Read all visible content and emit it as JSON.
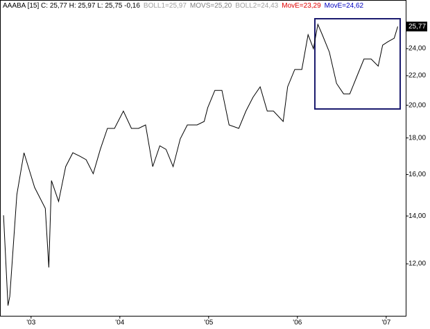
{
  "chart_data": {
    "type": "line",
    "title": "AAABA [15] C: 25,77 H: 25,97 L: 25,75 -0,16",
    "indicators": [
      {
        "text": "BOLL1=25,97",
        "color": "#a0a0a0"
      },
      {
        "text": "MOVS=25,20",
        "color": "#808080"
      },
      {
        "text": "BOLL2=24,43",
        "color": "#a0a0a0"
      },
      {
        "text": "MovE=23,29",
        "color": "#e00000"
      },
      {
        "text": "MovE=24,62",
        "color": "#0000c0"
      }
    ],
    "last_value_label": "25,77",
    "log_scale": true,
    "x": [
      2002.69,
      2002.74,
      2002.76,
      2002.84,
      2002.92,
      2003.04,
      2003.16,
      2003.2,
      2003.23,
      2003.31,
      2003.39,
      2003.47,
      2003.55,
      2003.62,
      2003.7,
      2003.78,
      2003.86,
      2003.94,
      2004.04,
      2004.13,
      2004.21,
      2004.29,
      2004.37,
      2004.45,
      2004.52,
      2004.6,
      2004.68,
      2004.76,
      2004.87,
      2004.95,
      2004.99,
      2005.07,
      2005.15,
      2005.23,
      2005.34,
      2005.42,
      2005.5,
      2005.58,
      2005.66,
      2005.73,
      2005.84,
      2005.89,
      2005.97,
      2006.05,
      2006.12,
      2006.18,
      2006.23,
      2006.28,
      2006.36,
      2006.44,
      2006.52,
      2006.59,
      2006.67,
      2006.75,
      2006.83,
      2006.91,
      2006.96,
      2007.02,
      2007.09,
      2007.13
    ],
    "series": [
      {
        "name": "AAABA",
        "color": "#000000",
        "values": [
          14.03,
          10.49,
          10.8,
          15.0,
          17.16,
          15.35,
          14.35,
          11.86,
          15.69,
          14.67,
          16.41,
          17.16,
          16.97,
          16.78,
          16.04,
          17.35,
          18.56,
          18.56,
          19.63,
          18.56,
          18.56,
          18.77,
          16.41,
          17.55,
          17.35,
          16.41,
          17.95,
          18.77,
          18.77,
          18.98,
          19.84,
          20.98,
          20.98,
          18.77,
          18.56,
          19.63,
          20.52,
          21.22,
          19.63,
          19.63,
          18.98,
          21.22,
          22.44,
          22.44,
          25.1,
          24.0,
          25.95,
          25.1,
          23.73,
          21.46,
          20.75,
          20.75,
          21.95,
          23.21,
          23.21,
          22.69,
          24.27,
          24.54,
          24.82,
          25.77
        ]
      }
    ],
    "xlim": [
      2002.65,
      2007.22
    ],
    "xticks": [
      {
        "value": 2003,
        "label": "'03"
      },
      {
        "value": 2004,
        "label": "'04"
      },
      {
        "value": 2005,
        "label": "'05"
      },
      {
        "value": 2006,
        "label": "'06"
      },
      {
        "value": 2007,
        "label": "'07"
      }
    ],
    "ylim": [
      10.15,
      28.07
    ],
    "yticks": [
      {
        "value": 12,
        "label": "12,00"
      },
      {
        "value": 14,
        "label": "14,00"
      },
      {
        "value": 16,
        "label": "16,00"
      },
      {
        "value": 18,
        "label": "18,00"
      },
      {
        "value": 20,
        "label": "20,00"
      },
      {
        "value": 22,
        "label": "22,00"
      },
      {
        "value": 24,
        "label": "24,00"
      }
    ]
  }
}
